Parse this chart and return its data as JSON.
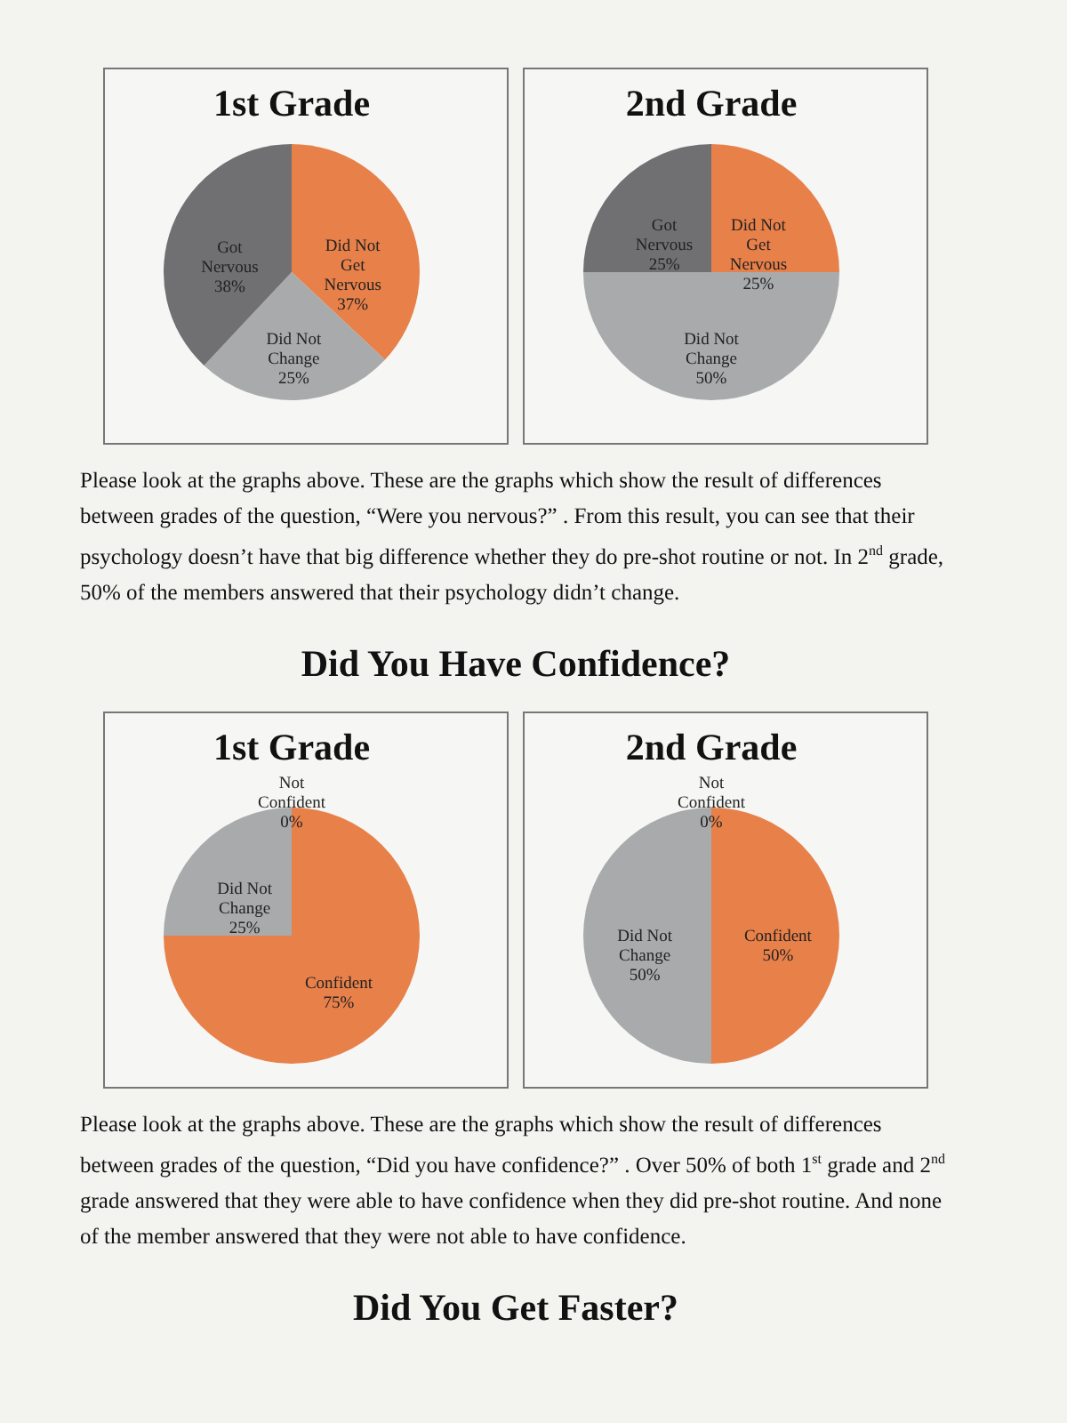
{
  "chart_data": [
    {
      "type": "pie",
      "title": "1st Grade",
      "categories": [
        "Did Not Get Nervous",
        "Did Not Change",
        "Got Nervous"
      ],
      "values": [
        37,
        25,
        38
      ],
      "colors": [
        "#e8804a",
        "#a9aaac",
        "#707073"
      ],
      "value_labels": [
        "37%",
        "25%",
        "38%"
      ],
      "legend": false,
      "annotations": [
        "Please look at the graphs above. These are the graphs which show the result of differences between grades of the question, “Were you nervous?” . From this result, you can see that their psychology doesn’t have that big difference whether they do pre-shot routine or not. In 2$^{nd}$ grade, 50% of the members answered that their psychology didn’t change.",
        "Did You Have Confidence?"
      ]
    },
    {
      "type": "pie",
      "title": "2nd Grade",
      "categories": [
        "Did Not Get Nervous",
        "Did Not Change",
        "Got Nervous"
      ],
      "values": [
        25,
        50,
        25
      ],
      "colors": [
        "#e8804a",
        "#a9aaac",
        "#707073"
      ],
      "value_labels": [
        "25%",
        "50%",
        "25%"
      ],
      "legend": false
    },
    {
      "type": "pie",
      "title": "1st Grade",
      "categories": [
        "Confident",
        "Did Not Change",
        "Not Confident"
      ],
      "values": [
        75,
        25,
        0
      ],
      "colors": [
        "#e8804a",
        "#a9aaac",
        "#707073"
      ],
      "value_labels": [
        "75%",
        "25%",
        "0%"
      ],
      "legend": false,
      "annotations": [
        "Please look at the graphs above. These are the graphs which show the result of differences between grades of the question, “Did you have confidence?” . Over 50% of both 1$^{st}$ grade and 2$^{nd}$ grade answered that they were able to have confidence when they did pre-shot routine. And none of the member answered that they were not able to have confidence.",
        "Did You Get Faster?"
      ]
    },
    {
      "type": "pie",
      "title": "2nd Grade",
      "categories": [
        "Confident",
        "Did Not Change",
        "Not Confident"
      ],
      "values": [
        50,
        50,
        0
      ],
      "colors": [
        "#e8804a",
        "#a9aaac",
        "#707073"
      ],
      "value_labels": [
        "50%",
        "50%",
        "0%"
      ],
      "legend": false
    }
  ]
}
